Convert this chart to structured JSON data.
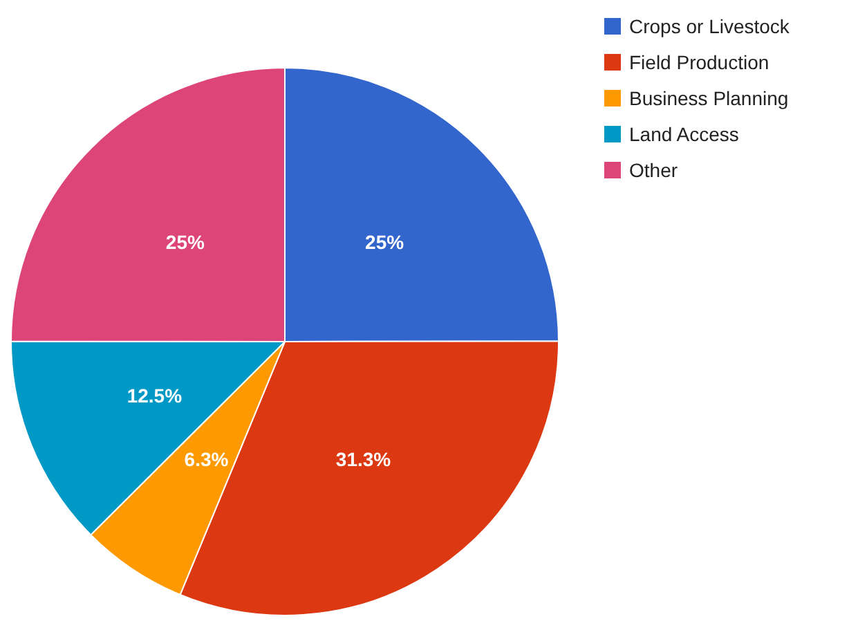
{
  "chart_data": {
    "type": "pie",
    "categories": [
      "Crops or Livestock",
      "Field Production",
      "Business Planning",
      "Land Access",
      "Other"
    ],
    "values": [
      25,
      31.3,
      6.3,
      12.5,
      25
    ],
    "colors": [
      "#3366cc",
      "#dc3912",
      "#ff9900",
      "#0099c6",
      "#dd4477"
    ],
    "value_labels": [
      "25%",
      "31.3%",
      "6.3%",
      "12.5%",
      "25%"
    ],
    "legend": "top right"
  }
}
